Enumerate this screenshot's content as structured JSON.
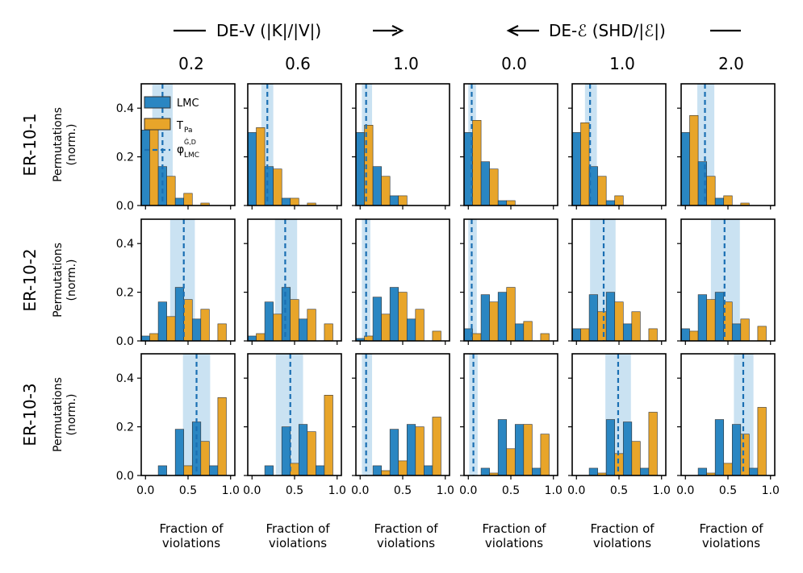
{
  "figure": {
    "group_left_label": "DE-V (|K|/|V|)",
    "group_right_label": "DE-ℰ (SHD/|ℰ|)",
    "ylabel_line1": "Permutations",
    "ylabel_line2": "(norm.)",
    "xlabel_line1": "Fraction of",
    "xlabel_line2": "violations",
    "legend": {
      "lmc": "LMC",
      "tpa": "T",
      "tpa_sub": "Pa",
      "phi": "φ",
      "phi_sub": "LMC",
      "phi_sup": "Ĝ,D"
    }
  },
  "colors": {
    "lmc": "#2a86c2",
    "tpa": "#e8a52a",
    "phi": "#1a6fb3",
    "band": "#9ecae8"
  },
  "chart_data": {
    "type": "bar",
    "column_headers": [
      "0.2",
      "0.6",
      "1.0",
      "0.0",
      "1.0",
      "2.0"
    ],
    "row_headers": [
      "ER-10-1",
      "ER-10-2",
      "ER-10-3"
    ],
    "bin_centers": [
      0.05,
      0.25,
      0.45,
      0.65,
      0.85
    ],
    "xlim": [
      -0.05,
      1.05
    ],
    "ylim": [
      0,
      0.5
    ],
    "xticks": [
      "0.0",
      "0.5",
      "1.0"
    ],
    "yticks": [
      "0.0",
      "0.2",
      "0.4"
    ],
    "panels": [
      [
        {
          "lmc": [
            0.31,
            0.16,
            0.03,
            0.0,
            0.0
          ],
          "tpa": [
            0.33,
            0.12,
            0.05,
            0.01,
            0.0
          ],
          "phi": 0.2,
          "band": [
            0.08,
            0.32
          ]
        },
        {
          "lmc": [
            0.3,
            0.16,
            0.03,
            0.0,
            0.0
          ],
          "tpa": [
            0.32,
            0.15,
            0.03,
            0.01,
            0.0
          ],
          "phi": 0.18,
          "band": [
            0.11,
            0.25
          ]
        },
        {
          "lmc": [
            0.3,
            0.16,
            0.04,
            0.0,
            0.0
          ],
          "tpa": [
            0.33,
            0.12,
            0.04,
            0.0,
            0.0
          ],
          "phi": 0.07,
          "band": [
            0.02,
            0.14
          ]
        },
        {
          "lmc": [
            0.3,
            0.18,
            0.02,
            0.0,
            0.0
          ],
          "tpa": [
            0.35,
            0.15,
            0.02,
            0.0,
            0.0
          ],
          "phi": 0.04,
          "band": [
            0.0,
            0.09
          ]
        },
        {
          "lmc": [
            0.3,
            0.16,
            0.02,
            0.0,
            0.0
          ],
          "tpa": [
            0.34,
            0.12,
            0.04,
            0.0,
            0.0
          ],
          "phi": 0.16,
          "band": [
            0.1,
            0.24
          ]
        },
        {
          "lmc": [
            0.3,
            0.18,
            0.03,
            0.0,
            0.0
          ],
          "tpa": [
            0.37,
            0.12,
            0.04,
            0.01,
            0.0
          ],
          "phi": 0.23,
          "band": [
            0.14,
            0.34
          ]
        }
      ],
      [
        {
          "lmc": [
            0.02,
            0.16,
            0.22,
            0.09,
            0.0
          ],
          "tpa": [
            0.03,
            0.1,
            0.17,
            0.13,
            0.07
          ],
          "phi": 0.45,
          "band": [
            0.29,
            0.58
          ]
        },
        {
          "lmc": [
            0.02,
            0.16,
            0.22,
            0.09,
            0.0
          ],
          "tpa": [
            0.03,
            0.11,
            0.17,
            0.13,
            0.07
          ],
          "phi": 0.39,
          "band": [
            0.27,
            0.53
          ]
        },
        {
          "lmc": [
            0.01,
            0.18,
            0.22,
            0.09,
            0.0
          ],
          "tpa": [
            0.02,
            0.11,
            0.2,
            0.13,
            0.04
          ],
          "phi": 0.07,
          "band": [
            0.02,
            0.12
          ]
        },
        {
          "lmc": [
            0.05,
            0.19,
            0.2,
            0.07,
            0.0
          ],
          "tpa": [
            0.03,
            0.16,
            0.22,
            0.08,
            0.03
          ],
          "phi": 0.04,
          "band": [
            0.0,
            0.1
          ]
        },
        {
          "lmc": [
            0.05,
            0.19,
            0.2,
            0.07,
            0.0
          ],
          "tpa": [
            0.05,
            0.12,
            0.16,
            0.12,
            0.05
          ],
          "phi": 0.32,
          "band": [
            0.16,
            0.46
          ]
        },
        {
          "lmc": [
            0.05,
            0.19,
            0.2,
            0.07,
            0.0
          ],
          "tpa": [
            0.04,
            0.17,
            0.16,
            0.09,
            0.06
          ],
          "phi": 0.46,
          "band": [
            0.3,
            0.64
          ]
        }
      ],
      [
        {
          "lmc": [
            0.0,
            0.04,
            0.19,
            0.22,
            0.04
          ],
          "tpa": [
            0.0,
            0.0,
            0.04,
            0.14,
            0.32
          ],
          "phi": 0.6,
          "band": [
            0.44,
            0.76
          ]
        },
        {
          "lmc": [
            0.0,
            0.04,
            0.2,
            0.21,
            0.04
          ],
          "tpa": [
            0.0,
            0.0,
            0.05,
            0.18,
            0.33
          ],
          "phi": 0.45,
          "band": [
            0.28,
            0.6
          ]
        },
        {
          "lmc": [
            0.0,
            0.04,
            0.19,
            0.21,
            0.04
          ],
          "tpa": [
            0.0,
            0.02,
            0.06,
            0.2,
            0.24
          ],
          "phi": 0.07,
          "band": [
            0.02,
            0.14
          ]
        },
        {
          "lmc": [
            0.0,
            0.03,
            0.23,
            0.21,
            0.03
          ],
          "tpa": [
            0.0,
            0.01,
            0.11,
            0.21,
            0.17
          ],
          "phi": 0.06,
          "band": [
            0.01,
            0.11
          ]
        },
        {
          "lmc": [
            0.0,
            0.03,
            0.23,
            0.22,
            0.03
          ],
          "tpa": [
            0.0,
            0.01,
            0.09,
            0.14,
            0.26
          ],
          "phi": 0.49,
          "band": [
            0.34,
            0.64
          ]
        },
        {
          "lmc": [
            0.0,
            0.03,
            0.23,
            0.21,
            0.03
          ],
          "tpa": [
            0.0,
            0.01,
            0.05,
            0.17,
            0.28
          ],
          "phi": 0.68,
          "band": [
            0.57,
            0.8
          ]
        }
      ]
    ]
  }
}
